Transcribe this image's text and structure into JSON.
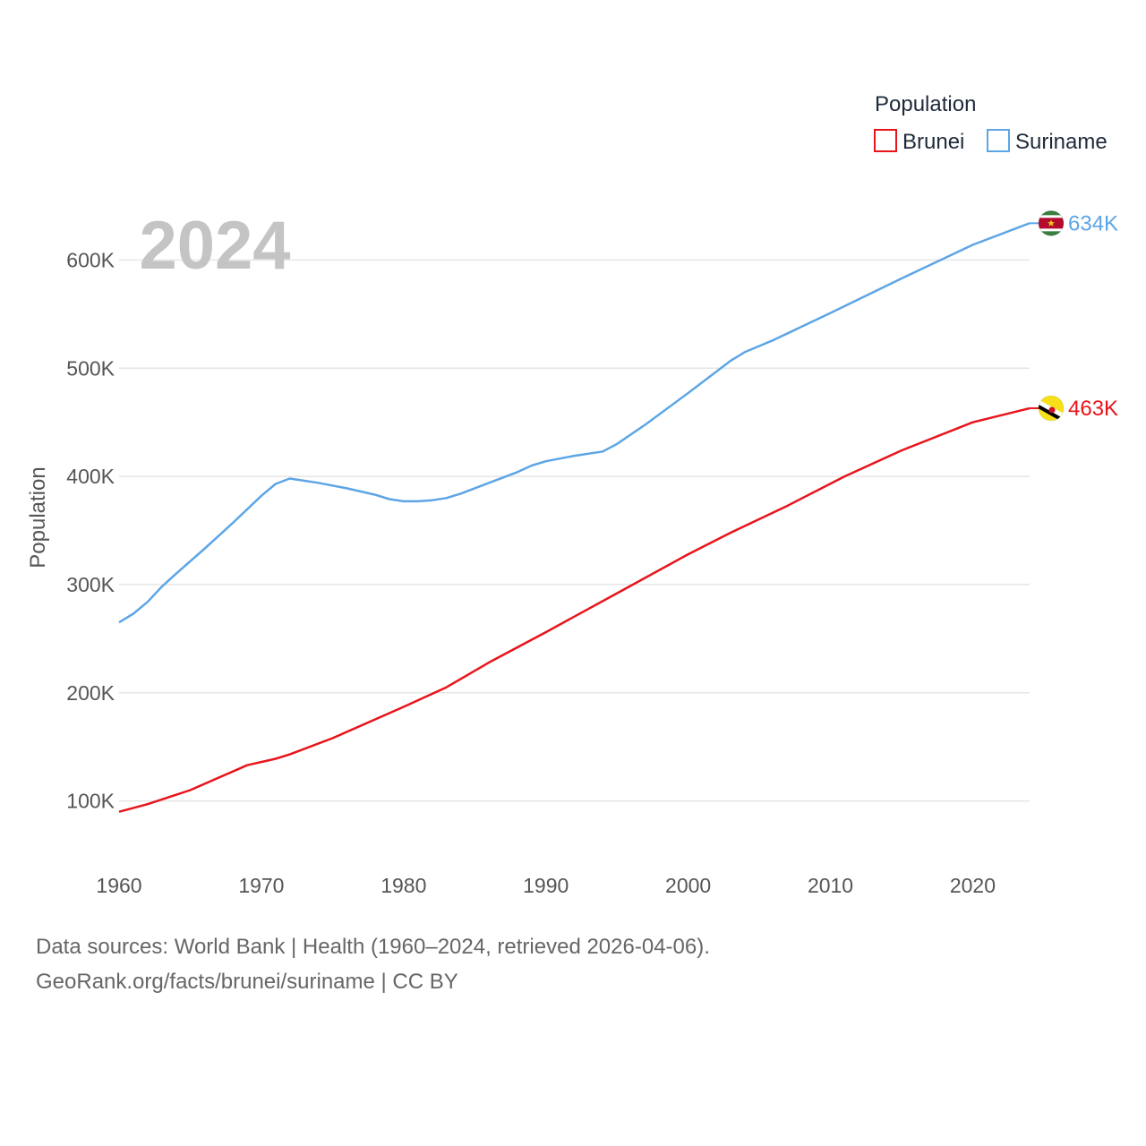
{
  "chart_data": {
    "type": "line",
    "title": "Population",
    "ylabel": "Population",
    "year_label": "2024",
    "xlim": [
      1960,
      2024
    ],
    "ylim": [
      50000,
      650000
    ],
    "x_ticks": [
      1960,
      1970,
      1980,
      1990,
      2000,
      2010,
      2020
    ],
    "y_ticks": [
      {
        "value": 100000,
        "label": "100K"
      },
      {
        "value": 200000,
        "label": "200K"
      },
      {
        "value": 300000,
        "label": "300K"
      },
      {
        "value": 400000,
        "label": "400K"
      },
      {
        "value": 500000,
        "label": "500K"
      },
      {
        "value": 600000,
        "label": "600K"
      }
    ],
    "legend": {
      "title": "Population",
      "position": "top-right"
    },
    "grid": true,
    "series": [
      {
        "name": "Brunei",
        "color": "#e8141b",
        "end_label": "463K",
        "flag_icon": "brunei-flag-icon",
        "points": [
          [
            1960,
            90000
          ],
          [
            1962,
            97000
          ],
          [
            1965,
            110000
          ],
          [
            1969,
            133000
          ],
          [
            1971,
            139000
          ],
          [
            1972,
            143000
          ],
          [
            1975,
            158000
          ],
          [
            1980,
            187000
          ],
          [
            1983,
            205000
          ],
          [
            1986,
            228000
          ],
          [
            1990,
            256000
          ],
          [
            1995,
            292000
          ],
          [
            2000,
            328000
          ],
          [
            2003,
            348000
          ],
          [
            2007,
            373000
          ],
          [
            2011,
            400000
          ],
          [
            2015,
            424000
          ],
          [
            2020,
            450000
          ],
          [
            2024,
            463000
          ]
        ]
      },
      {
        "name": "Suriname",
        "color": "#5da5e6",
        "end_label": "634K",
        "flag_icon": "suriname-flag-icon",
        "points": [
          [
            1960,
            265000
          ],
          [
            1961,
            273000
          ],
          [
            1962,
            284000
          ],
          [
            1963,
            298000
          ],
          [
            1964,
            310000
          ],
          [
            1966,
            333000
          ],
          [
            1968,
            357000
          ],
          [
            1970,
            382000
          ],
          [
            1971,
            393000
          ],
          [
            1972,
            398000
          ],
          [
            1974,
            394000
          ],
          [
            1976,
            389000
          ],
          [
            1978,
            383000
          ],
          [
            1979,
            379000
          ],
          [
            1980,
            377000
          ],
          [
            1981,
            377000
          ],
          [
            1982,
            378000
          ],
          [
            1983,
            380000
          ],
          [
            1984,
            384000
          ],
          [
            1986,
            394000
          ],
          [
            1988,
            404000
          ],
          [
            1989,
            410000
          ],
          [
            1990,
            414000
          ],
          [
            1992,
            419000
          ],
          [
            1994,
            423000
          ],
          [
            1995,
            430000
          ],
          [
            1997,
            448000
          ],
          [
            2000,
            477000
          ],
          [
            2003,
            507000
          ],
          [
            2004,
            515000
          ],
          [
            2006,
            526000
          ],
          [
            2010,
            551000
          ],
          [
            2015,
            583000
          ],
          [
            2020,
            614000
          ],
          [
            2024,
            634000
          ]
        ]
      }
    ]
  },
  "footer": {
    "sources": "Data sources: World Bank | Health (1960–2024, retrieved 2026-04-06).",
    "credit": "GeoRank.org/facts/brunei/suriname | CC BY"
  }
}
